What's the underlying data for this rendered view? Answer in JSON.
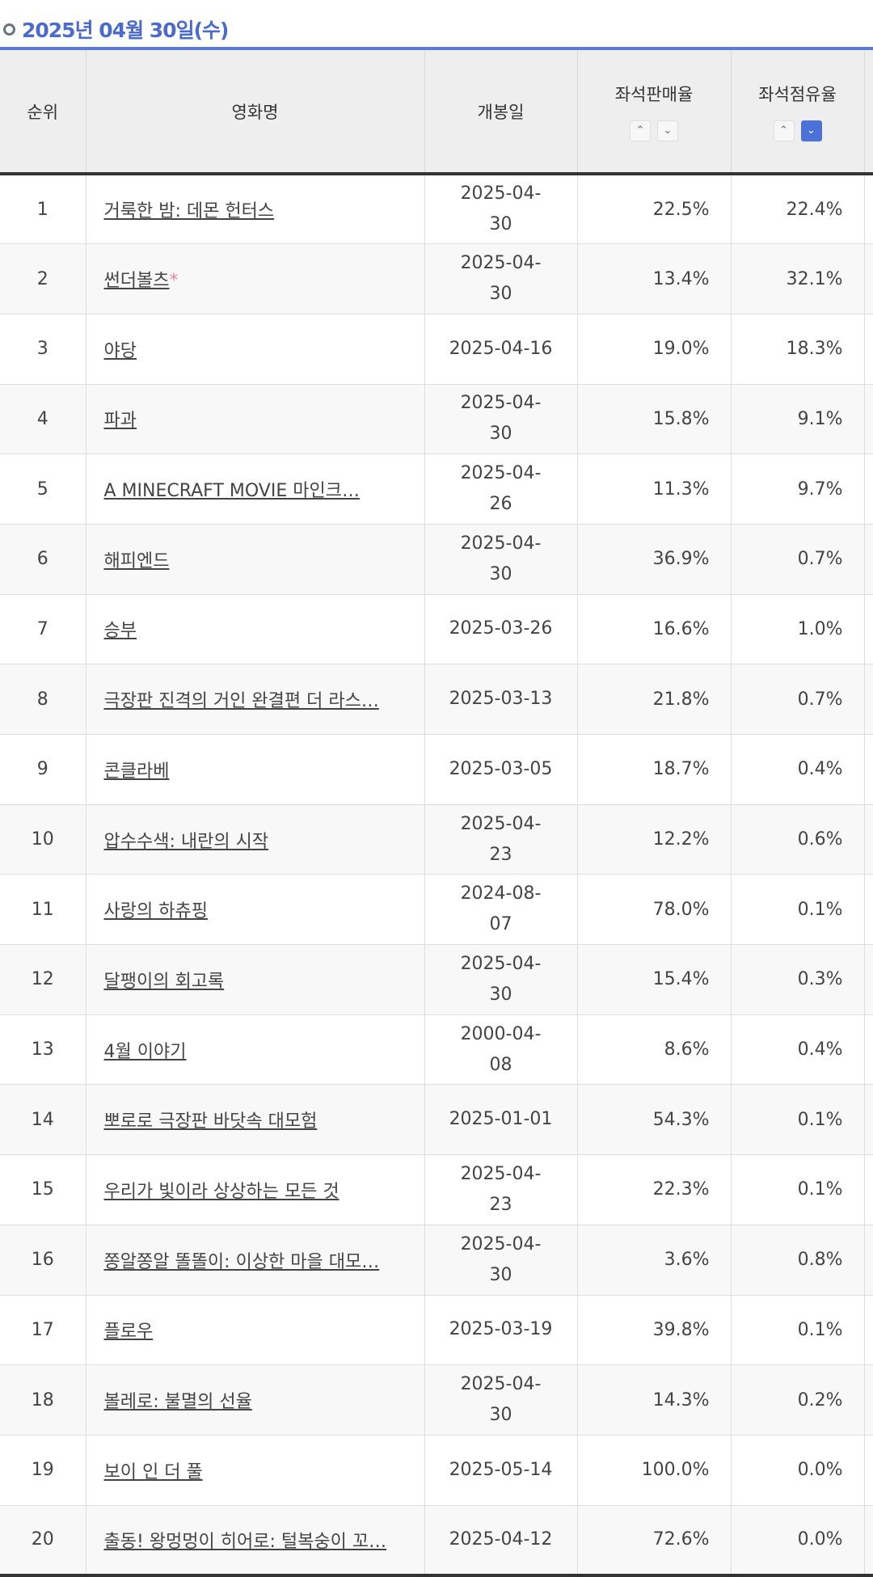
{
  "title": "2025년 04월 30일(수)",
  "colors": {
    "accent": "#4a6bc9",
    "active_sort": "#4a72d9",
    "asterisk": "#e58aa8"
  },
  "headers": {
    "rank": "순위",
    "name": "영화명",
    "release": "개봉일",
    "sales_rate": "좌석판매율",
    "occupancy_rate": "좌석점유율"
  },
  "sort": {
    "sales_rate": {
      "up": "^",
      "down": "v",
      "active": null
    },
    "occupancy_rate": {
      "up": "^",
      "down": "v",
      "active": "down"
    }
  },
  "rows": [
    {
      "rank": "1",
      "name": "거룩한 밤: 데몬 헌터스",
      "date": "2025-04-30",
      "wrap": true,
      "sales": "22.5%",
      "occ": "22.4%"
    },
    {
      "rank": "2",
      "name": "썬더볼츠",
      "star": "*",
      "date": "2025-04-30",
      "wrap": true,
      "sales": "13.4%",
      "occ": "32.1%"
    },
    {
      "rank": "3",
      "name": "야당",
      "date": "2025-04-16",
      "wrap": false,
      "sales": "19.0%",
      "occ": "18.3%"
    },
    {
      "rank": "4",
      "name": "파과",
      "date": "2025-04-30",
      "wrap": true,
      "sales": "15.8%",
      "occ": "9.1%"
    },
    {
      "rank": "5",
      "name": "A MINECRAFT MOVIE 마인크…",
      "date": "2025-04-26",
      "wrap": true,
      "sales": "11.3%",
      "occ": "9.7%"
    },
    {
      "rank": "6",
      "name": "해피엔드",
      "date": "2025-04-30",
      "wrap": true,
      "sales": "36.9%",
      "occ": "0.7%"
    },
    {
      "rank": "7",
      "name": "승부",
      "date": "2025-03-26",
      "wrap": false,
      "sales": "16.6%",
      "occ": "1.0%"
    },
    {
      "rank": "8",
      "name": "극장판 진격의 거인 완결편 더 라스…",
      "date": "2025-03-13",
      "wrap": false,
      "sales": "21.8%",
      "occ": "0.7%"
    },
    {
      "rank": "9",
      "name": "콘클라베",
      "date": "2025-03-05",
      "wrap": false,
      "sales": "18.7%",
      "occ": "0.4%"
    },
    {
      "rank": "10",
      "name": "압수수색: 내란의 시작",
      "date": "2025-04-23",
      "wrap": true,
      "sales": "12.2%",
      "occ": "0.6%"
    },
    {
      "rank": "11",
      "name": "사랑의 하츄핑",
      "date": "2024-08-07",
      "wrap": true,
      "sales": "78.0%",
      "occ": "0.1%"
    },
    {
      "rank": "12",
      "name": "달팽이의 회고록",
      "date": "2025-04-30",
      "wrap": true,
      "sales": "15.4%",
      "occ": "0.3%"
    },
    {
      "rank": "13",
      "name": "4월 이야기",
      "date": "2000-04-08",
      "wrap": true,
      "sales": "8.6%",
      "occ": "0.4%"
    },
    {
      "rank": "14",
      "name": "뽀로로 극장판 바닷속 대모험",
      "date": "2025-01-01",
      "wrap": false,
      "sales": "54.3%",
      "occ": "0.1%"
    },
    {
      "rank": "15",
      "name": "우리가 빛이라 상상하는 모든 것",
      "date": "2025-04-23",
      "wrap": true,
      "sales": "22.3%",
      "occ": "0.1%"
    },
    {
      "rank": "16",
      "name": "쫑알쫑알 똘똘이: 이상한 마을 대모…",
      "date": "2025-04-30",
      "wrap": true,
      "sales": "3.6%",
      "occ": "0.8%"
    },
    {
      "rank": "17",
      "name": "플로우",
      "date": "2025-03-19",
      "wrap": false,
      "sales": "39.8%",
      "occ": "0.1%"
    },
    {
      "rank": "18",
      "name": "볼레로: 불멸의 선율",
      "date": "2025-04-30",
      "wrap": true,
      "sales": "14.3%",
      "occ": "0.2%"
    },
    {
      "rank": "19",
      "name": "보이 인 더 풀",
      "date": "2025-05-14",
      "wrap": false,
      "sales": "100.0%",
      "occ": "0.0%"
    },
    {
      "rank": "20",
      "name": "출동! 왕멍멍이 히어로: 털복숭이 꼬…",
      "date": "2025-04-12",
      "wrap": false,
      "sales": "72.6%",
      "occ": "0.0%"
    }
  ]
}
